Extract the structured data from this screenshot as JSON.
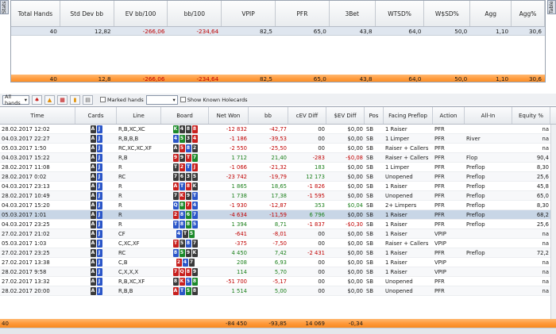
{
  "side_tabs": {
    "left": "Stats",
    "right": "Table"
  },
  "stats": {
    "headers": [
      "Total Hands",
      "Std Dev bb",
      "EV bb/100",
      "bb/100",
      "VPIP",
      "PFR",
      "3Bet",
      "WTSD%",
      "W$SD%",
      "Agg",
      "Agg%"
    ],
    "row_top": [
      "40",
      "12,82",
      "-266,06",
      "-234,64",
      "82,5",
      "65,0",
      "43,8",
      "64,0",
      "50,0",
      "1,10",
      "30,6"
    ],
    "row_total": [
      "40",
      "12,8",
      "-266,06",
      "-234,64",
      "82,5",
      "65,0",
      "43,8",
      "64,0",
      "50,0",
      "1,10",
      "30,6"
    ]
  },
  "toolbar": {
    "filter_value": "All hands",
    "marked_hands_label": "Marked hands",
    "show_holecards_label": "Show Known Holecards"
  },
  "grid": {
    "headers": [
      "Time",
      "Cards",
      "Line",
      "Board",
      "Net Won",
      "bb",
      "cEV Diff",
      "$EV Diff",
      "Pos",
      "Facing Preflop",
      "Action",
      "All-In",
      "Equity %"
    ],
    "rows": [
      {
        "time": "28.02.2017 12:02",
        "cards": [
          [
            "A",
            "s"
          ],
          [
            "J",
            "d"
          ]
        ],
        "line": "R,B,XC,XC",
        "board": [
          [
            "K",
            "cl"
          ],
          [
            "4",
            "s"
          ],
          [
            "8",
            "s"
          ],
          [
            "8",
            "h2"
          ]
        ],
        "net": "-12 832",
        "bb": "-42,77",
        "cev": "00",
        "sev": "$0,00",
        "pos": "SB",
        "facing": "1 Raiser",
        "action": "PFR",
        "allin": "",
        "eq": "na"
      },
      {
        "time": "04.03.2017 22:27",
        "cards": [
          [
            "A",
            "s"
          ],
          [
            "J",
            "d"
          ]
        ],
        "line": "R,B,B,B",
        "board": [
          [
            "4",
            "d"
          ],
          [
            "5",
            "cl"
          ],
          [
            "3",
            "s"
          ],
          [
            "4",
            "h2"
          ]
        ],
        "net": "-1 186",
        "bb": "-39,53",
        "cev": "00",
        "sev": "$0,00",
        "pos": "SB",
        "facing": "1 Limper",
        "action": "PFR",
        "allin": "River",
        "eq": "na"
      },
      {
        "time": "05.03.2017 1:50",
        "cards": [
          [
            "A",
            "s"
          ],
          [
            "J",
            "d"
          ]
        ],
        "line": "RC,XC,XC,XF",
        "board": [
          [
            "A",
            "s"
          ],
          [
            "5",
            "h2"
          ],
          [
            "8",
            "d"
          ],
          [
            "2",
            "s"
          ]
        ],
        "net": "-2 550",
        "bb": "-25,50",
        "cev": "00",
        "sev": "$0,00",
        "pos": "SB",
        "facing": "Raiser + Callers",
        "action": "PFR",
        "allin": "",
        "eq": "na"
      },
      {
        "time": "04.03.2017 15:22",
        "cards": [
          [
            "A",
            "s"
          ],
          [
            "J",
            "d"
          ]
        ],
        "line": "R,B",
        "board": [
          [
            "9",
            "h2"
          ],
          [
            "9",
            "s"
          ],
          [
            "T",
            "h2"
          ],
          [
            "7",
            "cl"
          ]
        ],
        "net": "1 712",
        "bb": "21,40",
        "cev": "-283",
        "sev": "-$0,08",
        "pos": "SB",
        "facing": "Raiser + Callers",
        "action": "PFR",
        "allin": "Flop",
        "eq": "90,4"
      },
      {
        "time": "28.02.2017 11:08",
        "cards": [
          [
            "A",
            "s"
          ],
          [
            "J",
            "d"
          ]
        ],
        "line": "R",
        "board": [
          [
            "T",
            "s"
          ],
          [
            "2",
            "h2"
          ],
          [
            "T",
            "d"
          ],
          [
            "J",
            "h2"
          ]
        ],
        "net": "-1 066",
        "bb": "-21,32",
        "cev": "183",
        "sev": "$0,00",
        "pos": "SB",
        "facing": "1 Limper",
        "action": "PFR",
        "allin": "Preflop",
        "eq": "8,30"
      },
      {
        "time": "28.02.2017 0:02",
        "cards": [
          [
            "A",
            "s"
          ],
          [
            "J",
            "d"
          ]
        ],
        "line": "RC",
        "board": [
          [
            "7",
            "s"
          ],
          [
            "6",
            "s"
          ],
          [
            "3",
            "s"
          ],
          [
            "5",
            "s"
          ]
        ],
        "net": "-23 742",
        "bb": "-19,79",
        "cev": "12 173",
        "sev": "$0,00",
        "pos": "SB",
        "facing": "Unopened",
        "action": "PFR",
        "allin": "Preflop",
        "eq": "25,6"
      },
      {
        "time": "04.03.2017 23:13",
        "cards": [
          [
            "A",
            "s"
          ],
          [
            "J",
            "d"
          ]
        ],
        "line": "R",
        "board": [
          [
            "A",
            "h2"
          ],
          [
            "T",
            "d"
          ],
          [
            "8",
            "h2"
          ],
          [
            "K",
            "s"
          ]
        ],
        "net": "1 865",
        "bb": "18,65",
        "cev": "-1 826",
        "sev": "$0,00",
        "pos": "SB",
        "facing": "1 Raiser",
        "action": "PFR",
        "allin": "Preflop",
        "eq": "45,8"
      },
      {
        "time": "28.02.2017 10:49",
        "cards": [
          [
            "A",
            "s"
          ],
          [
            "J",
            "d"
          ]
        ],
        "line": "R",
        "board": [
          [
            "7",
            "s"
          ],
          [
            "K",
            "h2"
          ],
          [
            "9",
            "s"
          ],
          [
            "T",
            "d"
          ]
        ],
        "net": "1 738",
        "bb": "17,38",
        "cev": "-1 595",
        "sev": "$0,00",
        "pos": "SB",
        "facing": "Unopened",
        "action": "PFR",
        "allin": "Preflop",
        "eq": "65,0"
      },
      {
        "time": "04.03.2017 15:20",
        "cards": [
          [
            "A",
            "s"
          ],
          [
            "J",
            "d"
          ]
        ],
        "line": "R",
        "board": [
          [
            "Q",
            "d"
          ],
          [
            "8",
            "cl"
          ],
          [
            "7",
            "h2"
          ],
          [
            "4",
            "d"
          ]
        ],
        "net": "-1 930",
        "bb": "-12,87",
        "cev": "353",
        "sev": "$0,04",
        "pos": "SB",
        "facing": "2+ Limpers",
        "action": "PFR",
        "allin": "Preflop",
        "eq": "8,30"
      },
      {
        "time": "05.03.2017 1:01",
        "cards": [
          [
            "A",
            "s"
          ],
          [
            "J",
            "d"
          ]
        ],
        "line": "R",
        "board": [
          [
            "2",
            "h2"
          ],
          [
            "8",
            "d"
          ],
          [
            "6",
            "cl"
          ],
          [
            "7",
            "d"
          ]
        ],
        "net": "-4 634",
        "bb": "-11,59",
        "cev": "6 796",
        "sev": "$0,00",
        "pos": "SB",
        "facing": "1 Raiser",
        "action": "PFR",
        "allin": "Preflop",
        "eq": "68,2",
        "selected": true
      },
      {
        "time": "04.03.2017 23:25",
        "cards": [
          [
            "A",
            "s"
          ],
          [
            "J",
            "d"
          ]
        ],
        "line": "R",
        "board": [
          [
            "T",
            "d"
          ],
          [
            "8",
            "d"
          ],
          [
            "8",
            "cl"
          ],
          [
            "5",
            "d"
          ]
        ],
        "net": "1 394",
        "bb": "8,71",
        "cev": "-1 837",
        "sev": "-$0,30",
        "pos": "SB",
        "facing": "1 Raiser",
        "action": "PFR",
        "allin": "Preflop",
        "eq": "25,6"
      },
      {
        "time": "27.02.2017 21:02",
        "cards": [
          [
            "A",
            "s"
          ],
          [
            "J",
            "d"
          ]
        ],
        "line": "CF",
        "board": [
          [
            "4",
            "d"
          ],
          [
            "T",
            "s"
          ],
          [
            "5",
            "cl"
          ]
        ],
        "net": "-641",
        "bb": "-8,01",
        "cev": "00",
        "sev": "$0,00",
        "pos": "SB",
        "facing": "1 Raiser",
        "action": "VPIP",
        "allin": "",
        "eq": "na"
      },
      {
        "time": "05.03.2017 1:03",
        "cards": [
          [
            "A",
            "s"
          ],
          [
            "J",
            "d"
          ]
        ],
        "line": "C,XC,XF",
        "board": [
          [
            "T",
            "h2"
          ],
          [
            "5",
            "s"
          ],
          [
            "8",
            "d"
          ],
          [
            "7",
            "s"
          ]
        ],
        "net": "-375",
        "bb": "-7,50",
        "cev": "00",
        "sev": "$0,00",
        "pos": "SB",
        "facing": "Raiser + Callers",
        "action": "VPIP",
        "allin": "",
        "eq": "na"
      },
      {
        "time": "27.02.2017 23:25",
        "cards": [
          [
            "A",
            "s"
          ],
          [
            "J",
            "d"
          ]
        ],
        "line": "RC",
        "board": [
          [
            "8",
            "d"
          ],
          [
            "5",
            "cl"
          ],
          [
            "9",
            "s"
          ],
          [
            "K",
            "s"
          ]
        ],
        "net": "4 450",
        "bb": "7,42",
        "cev": "-2 431",
        "sev": "$0,00",
        "pos": "SB",
        "facing": "1 Raiser",
        "action": "PFR",
        "allin": "Preflop",
        "eq": "72,2"
      },
      {
        "time": "27.02.2017 13:38",
        "cards": [
          [
            "A",
            "s"
          ],
          [
            "J",
            "d"
          ]
        ],
        "line": "C,B",
        "board": [
          [
            "2",
            "h2"
          ],
          [
            "4",
            "d"
          ],
          [
            "7",
            "s"
          ]
        ],
        "net": "208",
        "bb": "6,93",
        "cev": "00",
        "sev": "$0,00",
        "pos": "SB",
        "facing": "1 Raiser",
        "action": "VPIP",
        "allin": "",
        "eq": "na"
      },
      {
        "time": "28.02.2017 9:58",
        "cards": [
          [
            "A",
            "s"
          ],
          [
            "J",
            "d"
          ]
        ],
        "line": "C,X,X,X",
        "board": [
          [
            "7",
            "h2"
          ],
          [
            "Q",
            "h2"
          ],
          [
            "8",
            "h2"
          ],
          [
            "9",
            "s"
          ]
        ],
        "net": "114",
        "bb": "5,70",
        "cev": "00",
        "sev": "$0,00",
        "pos": "SB",
        "facing": "1 Raiser",
        "action": "VPIP",
        "allin": "",
        "eq": "na"
      },
      {
        "time": "27.02.2017 13:32",
        "cards": [
          [
            "A",
            "s"
          ],
          [
            "J",
            "d"
          ]
        ],
        "line": "R,B,XC,XF",
        "board": [
          [
            "8",
            "s"
          ],
          [
            "K",
            "h2"
          ],
          [
            "5",
            "d"
          ],
          [
            "8",
            "cl"
          ]
        ],
        "net": "-51 700",
        "bb": "-5,17",
        "cev": "00",
        "sev": "$0,00",
        "pos": "SB",
        "facing": "Unopened",
        "action": "PFR",
        "allin": "",
        "eq": "na"
      },
      {
        "time": "28.02.2017 20:00",
        "cards": [
          [
            "A",
            "s"
          ],
          [
            "J",
            "d"
          ]
        ],
        "line": "R,B,B",
        "board": [
          [
            "A",
            "h2"
          ],
          [
            "T",
            "d"
          ],
          [
            "5",
            "cl"
          ],
          [
            "8",
            "s"
          ]
        ],
        "net": "1 514",
        "bb": "5,00",
        "cev": "00",
        "sev": "$0,00",
        "pos": "SB",
        "facing": "Unopened",
        "action": "PFR",
        "allin": "",
        "eq": "na"
      }
    ],
    "footer": {
      "count": "40",
      "net": "-84 450",
      "bb": "-93,85",
      "cev": "14 069",
      "sev": "-0,34"
    }
  }
}
